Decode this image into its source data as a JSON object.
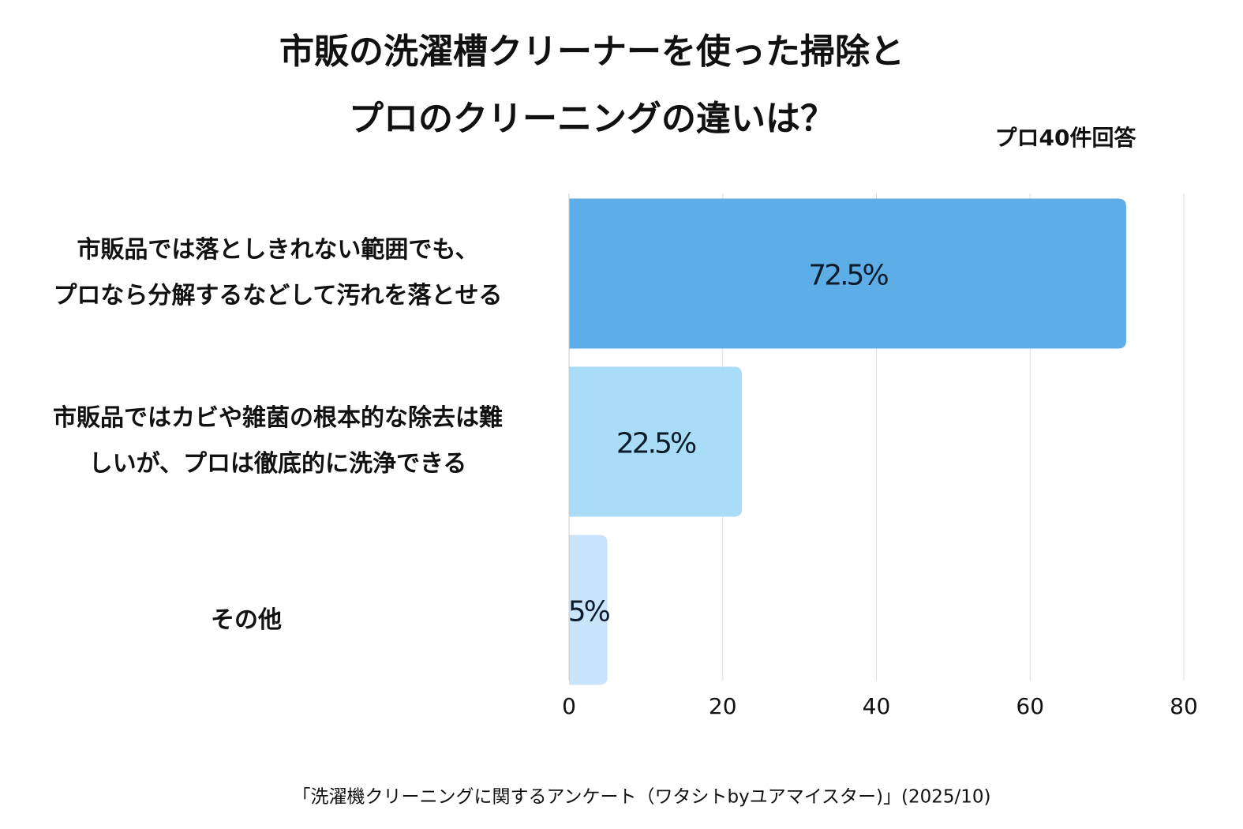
{
  "chart_data": {
    "type": "barh",
    "title": [
      "市販の洗濯槽クリーナーを使った掃除と",
      "プロのクリーニングの違いは？"
    ],
    "subtitle": "プロ40件回答",
    "source": "「洗濯機クリーニングに関するアンケート（ワタシトbyユアマイスター)」(2025/10)",
    "categories": [
      [
        "市販品では落としきれない範囲でも、",
        "プロなら分解するなどして汚れを落とせる"
      ],
      [
        "市販品ではカビや雑菌の根本的な除去は難",
        "しいが、プロは徹底的に洗浄できる"
      ],
      [
        "その他"
      ]
    ],
    "values": [
      72.5,
      22.5,
      5
    ],
    "value_labels": [
      "72.5%",
      "22.5%",
      "5%"
    ],
    "colors": [
      "#5dade6",
      "#a8dcf7",
      "#c9e4fb"
    ],
    "xlim": [
      0,
      80
    ],
    "xticks": [
      0,
      20,
      40,
      60,
      80
    ],
    "grid": true
  }
}
